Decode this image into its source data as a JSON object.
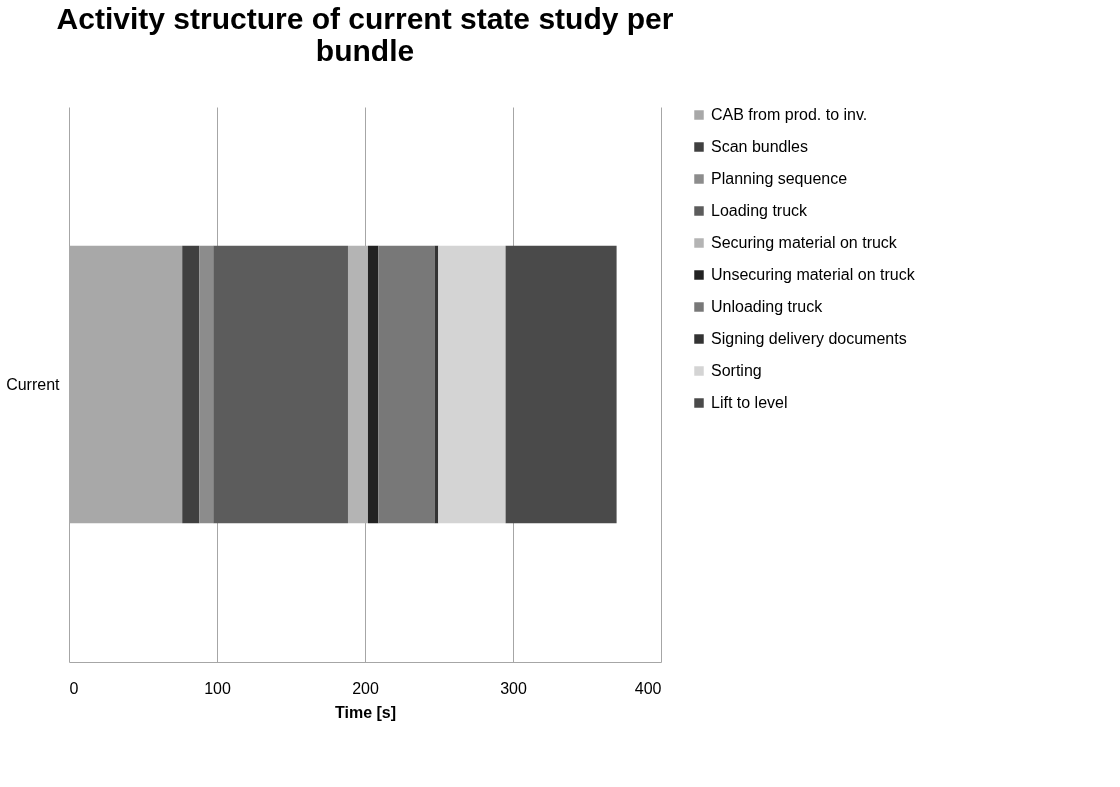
{
  "chart_data": {
    "type": "bar",
    "orientation": "horizontal",
    "stacked": true,
    "title": "Activity structure of current state study per bundle",
    "xlabel": "Time [s]",
    "categories": [
      "Current"
    ],
    "series": [
      {
        "name": "CAB from prod. to inv.",
        "color": "#a8a8a8",
        "values": [
          76.5
        ]
      },
      {
        "name": "Scan bundles",
        "color": "#404040",
        "values": [
          11.5
        ]
      },
      {
        "name": "Planning sequence",
        "color": "#8c8c8c",
        "values": [
          9.5
        ]
      },
      {
        "name": "Loading truck",
        "color": "#5c5c5c",
        "values": [
          91
        ]
      },
      {
        "name": "Securing material on truck",
        "color": "#b4b4b4",
        "values": [
          13.5
        ]
      },
      {
        "name": "Unsecuring material on truck",
        "color": "#222222",
        "values": [
          7
        ]
      },
      {
        "name": "Unloading truck",
        "color": "#787878",
        "values": [
          38
        ]
      },
      {
        "name": "Signing delivery documents",
        "color": "#333333",
        "values": [
          2.5
        ]
      },
      {
        "name": "Sorting",
        "color": "#d4d4d4",
        "values": [
          45.5
        ]
      },
      {
        "name": "Lift to level",
        "color": "#4a4a4a",
        "values": [
          75
        ]
      }
    ],
    "xlim": [
      0,
      400
    ],
    "xticks": [
      0,
      100,
      200,
      300,
      400
    ],
    "grid": "x",
    "legend": "right"
  }
}
